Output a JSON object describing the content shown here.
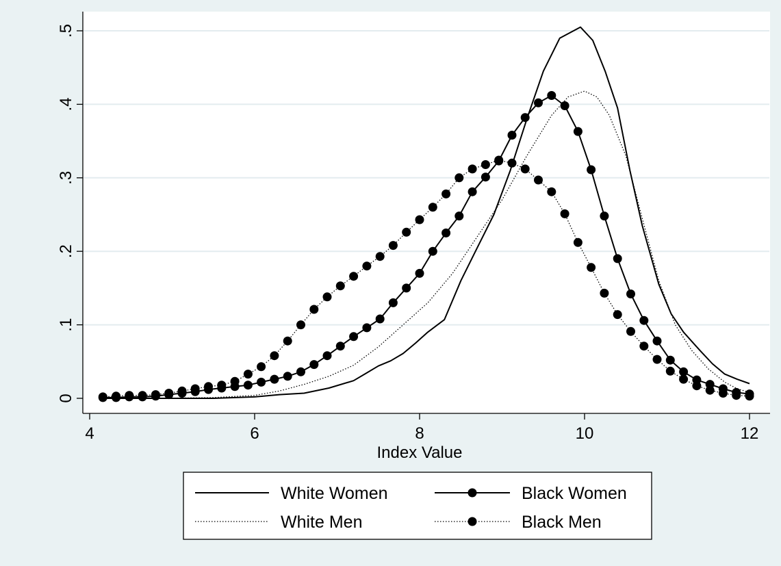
{
  "chart_data": {
    "type": "line",
    "xlabel": "Index Value",
    "ylabel": "",
    "xlim": [
      4,
      12
    ],
    "ylim": [
      0,
      0.5
    ],
    "xticks": [
      4,
      6,
      8,
      10,
      12
    ],
    "xtick_labels": [
      "4",
      "6",
      "8",
      "10",
      "12"
    ],
    "yticks": [
      0,
      0.1,
      0.2,
      0.3,
      0.4,
      0.5
    ],
    "ytick_labels": [
      "0",
      ".1",
      ".2",
      ".3",
      ".4",
      ".5"
    ],
    "grid": "horizontal",
    "legend_position": "bottom",
    "series": [
      {
        "name": "White Women",
        "style": "solid",
        "marker": "none",
        "color": "#000000",
        "x": [
          4.16,
          4.8,
          5.5,
          6.0,
          6.3,
          6.6,
          6.9,
          7.2,
          7.35,
          7.5,
          7.65,
          7.8,
          7.95,
          8.1,
          8.3,
          8.5,
          8.7,
          8.9,
          9.1,
          9.3,
          9.5,
          9.7,
          9.95,
          10.1,
          10.25,
          10.4,
          10.55,
          10.7,
          10.9,
          11.05,
          11.2,
          11.4,
          11.55,
          11.7,
          11.85,
          12.0
        ],
        "y": [
          0.0,
          0.0,
          0.0,
          0.002,
          0.005,
          0.007,
          0.014,
          0.024,
          0.034,
          0.044,
          0.051,
          0.061,
          0.075,
          0.09,
          0.107,
          0.16,
          0.205,
          0.25,
          0.31,
          0.38,
          0.445,
          0.49,
          0.505,
          0.487,
          0.445,
          0.395,
          0.31,
          0.235,
          0.155,
          0.115,
          0.09,
          0.065,
          0.047,
          0.033,
          0.026,
          0.02
        ]
      },
      {
        "name": "Black Women",
        "style": "solid",
        "marker": "circle",
        "color": "#000000",
        "x": [
          4.16,
          4.32,
          4.48,
          4.64,
          4.8,
          4.96,
          5.12,
          5.28,
          5.44,
          5.6,
          5.76,
          5.92,
          6.08,
          6.24,
          6.4,
          6.56,
          6.72,
          6.88,
          7.04,
          7.2,
          7.36,
          7.52,
          7.68,
          7.84,
          8.0,
          8.16,
          8.32,
          8.48,
          8.64,
          8.8,
          8.96,
          9.12,
          9.28,
          9.44,
          9.6,
          9.76,
          9.92,
          10.08,
          10.24,
          10.4,
          10.56,
          10.72,
          10.88,
          11.04,
          11.2,
          11.36,
          11.52,
          11.68,
          11.84,
          12.0
        ],
        "y": [
          0.001,
          0.001,
          0.002,
          0.002,
          0.003,
          0.005,
          0.007,
          0.009,
          0.012,
          0.014,
          0.016,
          0.018,
          0.022,
          0.026,
          0.03,
          0.036,
          0.046,
          0.058,
          0.071,
          0.084,
          0.096,
          0.108,
          0.13,
          0.15,
          0.17,
          0.2,
          0.225,
          0.248,
          0.281,
          0.301,
          0.323,
          0.358,
          0.382,
          0.402,
          0.412,
          0.398,
          0.363,
          0.311,
          0.248,
          0.19,
          0.142,
          0.106,
          0.078,
          0.052,
          0.036,
          0.025,
          0.019,
          0.013,
          0.008,
          0.006
        ]
      },
      {
        "name": "White Men",
        "style": "dotted",
        "marker": "none",
        "color": "#000000",
        "x": [
          4.16,
          4.8,
          5.5,
          6.0,
          6.3,
          6.6,
          6.9,
          7.2,
          7.5,
          7.8,
          8.1,
          8.4,
          8.7,
          9.0,
          9.3,
          9.6,
          9.8,
          10.0,
          10.15,
          10.3,
          10.5,
          10.7,
          10.9,
          11.1,
          11.3,
          11.5,
          11.7,
          11.85,
          12.0
        ],
        "y": [
          0.0,
          0.0,
          0.001,
          0.004,
          0.01,
          0.019,
          0.03,
          0.045,
          0.07,
          0.1,
          0.13,
          0.17,
          0.22,
          0.27,
          0.33,
          0.385,
          0.41,
          0.418,
          0.41,
          0.385,
          0.33,
          0.245,
          0.16,
          0.1,
          0.065,
          0.04,
          0.022,
          0.013,
          0.008
        ]
      },
      {
        "name": "Black Men",
        "style": "dotted",
        "marker": "circle",
        "color": "#000000",
        "x": [
          4.16,
          4.32,
          4.48,
          4.64,
          4.8,
          4.96,
          5.12,
          5.28,
          5.44,
          5.6,
          5.76,
          5.92,
          6.08,
          6.24,
          6.4,
          6.56,
          6.72,
          6.88,
          7.04,
          7.2,
          7.36,
          7.52,
          7.68,
          7.84,
          8.0,
          8.16,
          8.32,
          8.48,
          8.64,
          8.8,
          8.96,
          9.12,
          9.28,
          9.44,
          9.6,
          9.76,
          9.92,
          10.08,
          10.24,
          10.4,
          10.56,
          10.72,
          10.88,
          11.04,
          11.2,
          11.36,
          11.52,
          11.68,
          11.84,
          12.0
        ],
        "y": [
          0.002,
          0.003,
          0.004,
          0.004,
          0.005,
          0.007,
          0.01,
          0.013,
          0.016,
          0.018,
          0.023,
          0.033,
          0.043,
          0.058,
          0.078,
          0.1,
          0.121,
          0.138,
          0.153,
          0.166,
          0.18,
          0.193,
          0.208,
          0.226,
          0.243,
          0.26,
          0.278,
          0.3,
          0.312,
          0.318,
          0.324,
          0.32,
          0.312,
          0.297,
          0.281,
          0.251,
          0.212,
          0.178,
          0.143,
          0.114,
          0.091,
          0.071,
          0.053,
          0.037,
          0.026,
          0.017,
          0.011,
          0.007,
          0.004,
          0.003
        ]
      }
    ]
  }
}
